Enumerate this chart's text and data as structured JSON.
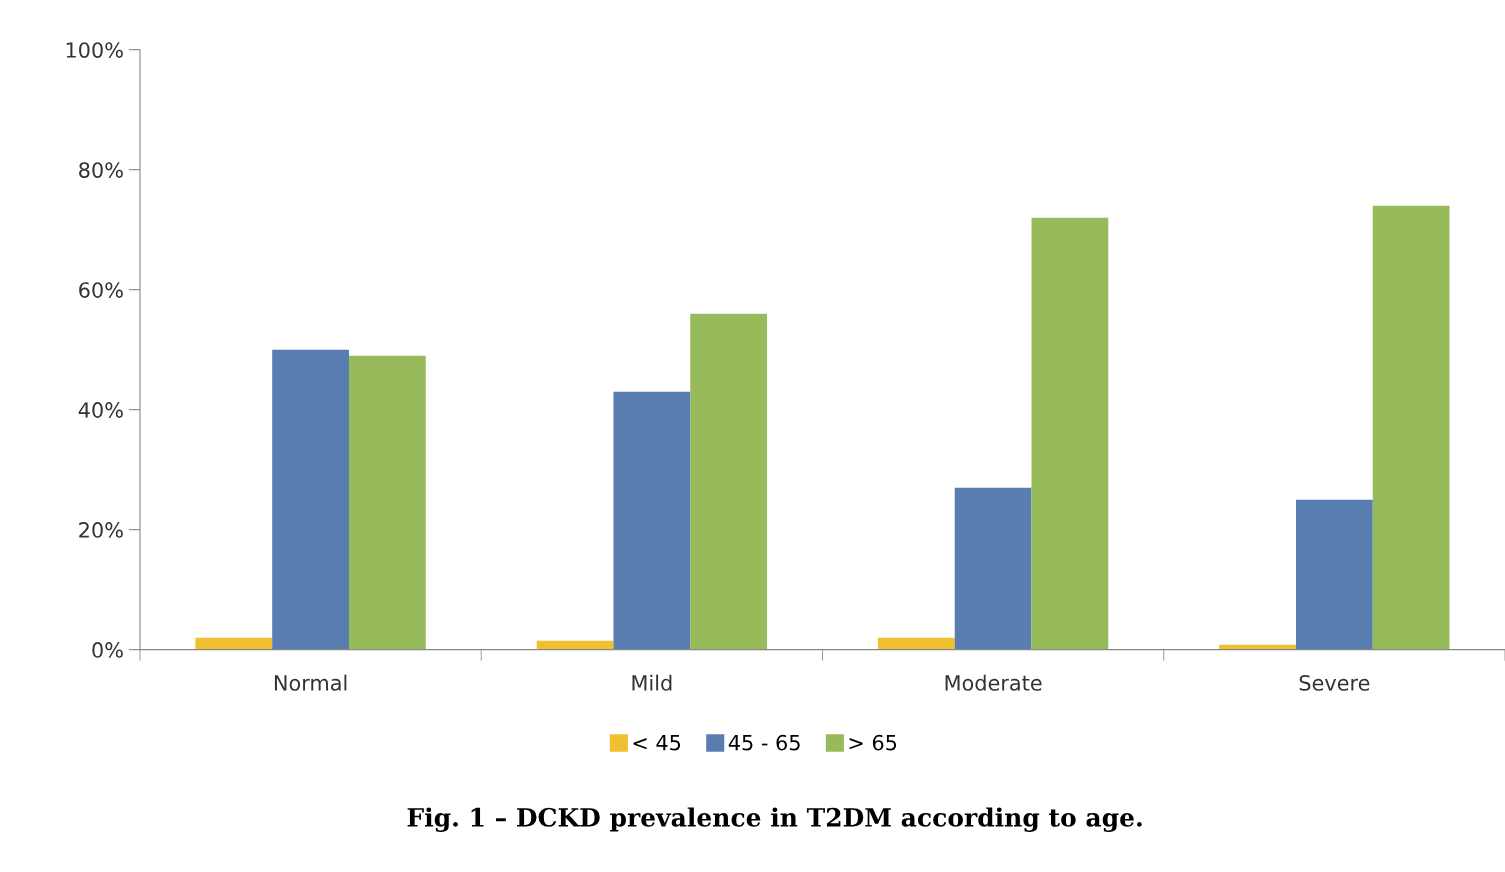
{
  "chart_data": {
    "type": "bar",
    "categories": [
      "Normal",
      "Mild",
      "Moderate",
      "Severe"
    ],
    "series": [
      {
        "name": "< 45",
        "color": "#f0c030",
        "values": [
          2,
          1.5,
          2,
          0.8
        ]
      },
      {
        "name": "45 - 65",
        "color": "#5a7db0",
        "values": [
          50,
          43,
          27,
          25
        ]
      },
      {
        "name": "> 65",
        "color": "#97bb5a",
        "values": [
          49,
          56,
          72,
          74
        ]
      }
    ],
    "ylim": [
      0,
      100
    ],
    "yticks": [
      {
        "value": 0,
        "label": "0%"
      },
      {
        "value": 20,
        "label": "20%"
      },
      {
        "value": 40,
        "label": "40%"
      },
      {
        "value": 60,
        "label": "60%"
      },
      {
        "value": 80,
        "label": "80%"
      },
      {
        "value": 100,
        "label": "100%"
      }
    ],
    "grid": false,
    "legend": "bottom",
    "annotations": [
      "Fig. 1 – DCKD prevalence in T2DM according to age."
    ]
  }
}
